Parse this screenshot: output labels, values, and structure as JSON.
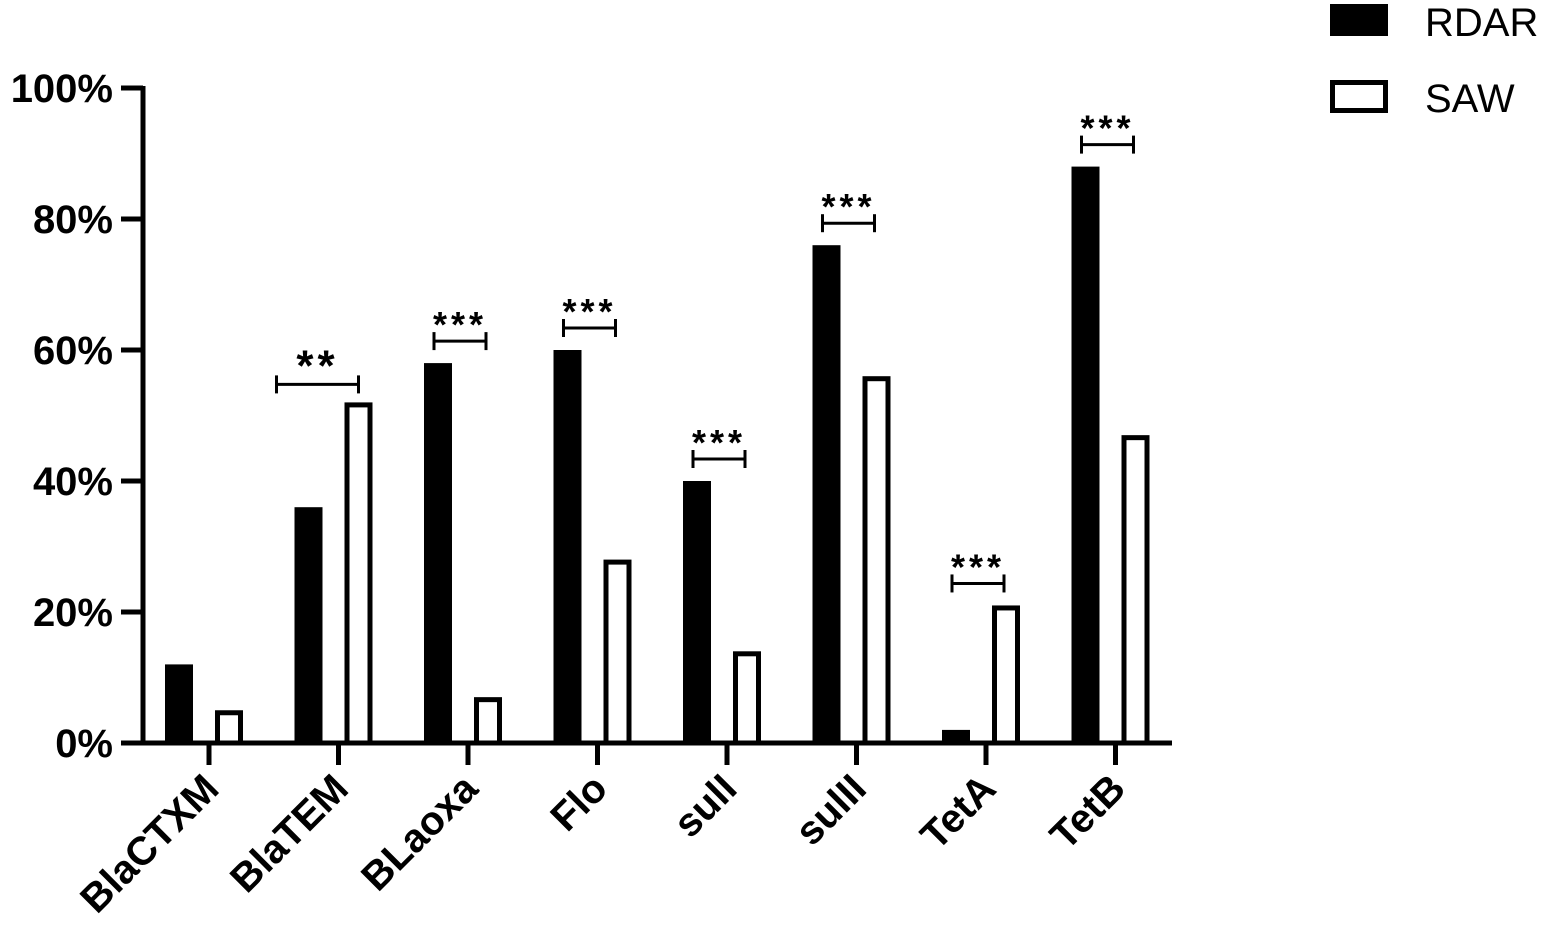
{
  "chart_data": {
    "type": "bar",
    "title": "",
    "xlabel": "",
    "ylabel": "",
    "categories": [
      "BlaCTXM",
      "BlaTEM",
      "BLaoxa",
      "Flo",
      "sulI",
      "sulII",
      "TetA",
      "TetB"
    ],
    "series": [
      {
        "name": "RDAR",
        "values": [
          12,
          36,
          58,
          60,
          40,
          76,
          2,
          88
        ],
        "style": "filled",
        "color": "#000000"
      },
      {
        "name": "SAW",
        "values": [
          5,
          52,
          7,
          28,
          14,
          56,
          21,
          47
        ],
        "style": "outline",
        "color": "#000000"
      }
    ],
    "ylim": [
      0,
      100
    ],
    "yticks": [
      0,
      20,
      40,
      60,
      80,
      100
    ],
    "ytick_labels": [
      "0%",
      "20%",
      "40%",
      "60%",
      "80%",
      "100%"
    ],
    "grid": false,
    "legend_position": "top-right",
    "annotations": [
      {
        "category": "BlaTEM",
        "text": "**"
      },
      {
        "category": "BLaoxa",
        "text": "***"
      },
      {
        "category": "Flo",
        "text": "***"
      },
      {
        "category": "sulI",
        "text": "***"
      },
      {
        "category": "sulII",
        "text": "***"
      },
      {
        "category": "TetA",
        "text": "***"
      },
      {
        "category": "TetB",
        "text": "***"
      }
    ]
  }
}
